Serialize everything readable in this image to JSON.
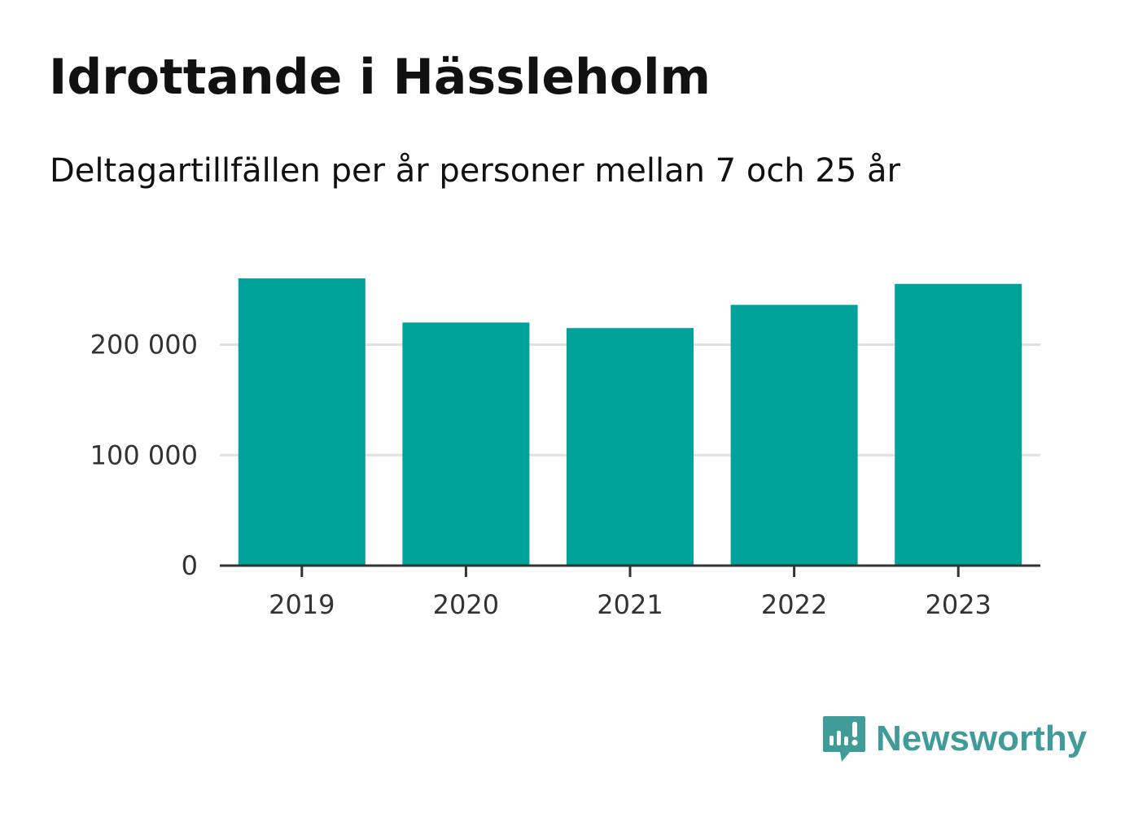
{
  "header": {
    "title": "Idrottande i Hässleholm",
    "subtitle": "Deltagartillfällen per år personer mellan 7 och 25 år"
  },
  "brand": {
    "name": "Newsworthy",
    "icon": "newsworthy-logo-icon",
    "color": "#3f9c98"
  },
  "colors": {
    "bar": "#00a39a",
    "grid": "#e0e0e0",
    "axis": "#333333",
    "text": "#111111"
  },
  "chart_data": {
    "type": "bar",
    "title": "Idrottande i Hässleholm",
    "subtitle": "Deltagartillfällen per år personer mellan 7 och 25 år",
    "xlabel": "",
    "ylabel": "",
    "categories": [
      "2019",
      "2020",
      "2021",
      "2022",
      "2023"
    ],
    "values": [
      260000,
      220000,
      215000,
      236000,
      255000
    ],
    "ylim": [
      0,
      280000
    ],
    "yticks": [
      0,
      100000,
      200000
    ],
    "ytick_labels": [
      "0",
      "100 000",
      "200 000"
    ],
    "grid": true,
    "legend": "none"
  }
}
